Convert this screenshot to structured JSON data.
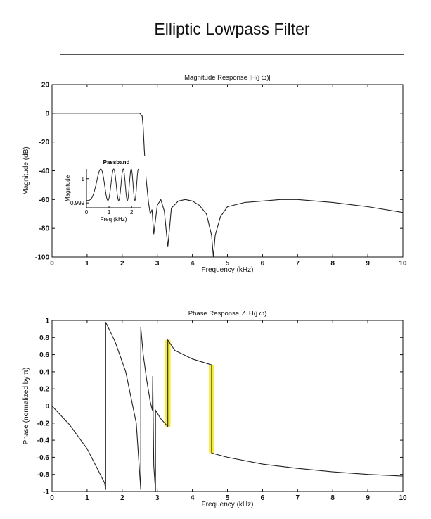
{
  "page": {
    "title": "Elliptic Lowpass Filter"
  },
  "chart_data": [
    {
      "type": "line",
      "title": "Magnitude Response |H(j ω)|",
      "xlabel": "Frequency (kHz)",
      "ylabel": "Magnitude (dB)",
      "xlim": [
        0,
        10
      ],
      "ylim": [
        -100,
        20
      ],
      "xticks": [
        "0",
        "1",
        "2",
        "3",
        "4",
        "5",
        "6",
        "7",
        "8",
        "9",
        "10"
      ],
      "yticks": [
        "20",
        "0",
        "-20",
        "-40",
        "-60",
        "-80",
        "-100"
      ],
      "grid": false,
      "series": [
        {
          "x": [
            0,
            2.5,
            2.57,
            2.6,
            2.63,
            2.68,
            2.75,
            2.8,
            2.85,
            2.9,
            3.0,
            3.1,
            3.2,
            3.3,
            3.4,
            3.6,
            3.8,
            4.0,
            4.2,
            4.4,
            4.55,
            4.6,
            4.65,
            4.8,
            5.0,
            5.5,
            6.0,
            6.5,
            7.0,
            8.0,
            9.0,
            10.0
          ],
          "y": [
            0,
            0,
            -2,
            -10,
            -25,
            -45,
            -62,
            -70,
            -67,
            -84,
            -64,
            -60,
            -68,
            -93,
            -66,
            -61,
            -60,
            -61,
            -64,
            -70,
            -85,
            -100,
            -85,
            -72,
            -65,
            -62,
            -61,
            -60,
            -60,
            -62,
            -65,
            -69
          ]
        }
      ],
      "inset": {
        "title": "Passband",
        "xlabel": "Freq (kHz)",
        "ylabel": "Magnitude",
        "xticks": [
          "0",
          "1",
          "2"
        ],
        "yticks": [
          "1",
          "0.999"
        ],
        "xlim": [
          0,
          2.4
        ],
        "ylim": [
          0.9988,
          1.0004
        ]
      }
    },
    {
      "type": "line",
      "title": "Phase Response ∠ H(j ω)",
      "xlabel": "Frequency (kHz)",
      "ylabel": "Phase (normalized by π)",
      "xlim": [
        0,
        10
      ],
      "ylim": [
        -1,
        1
      ],
      "xticks": [
        "0",
        "1",
        "2",
        "3",
        "4",
        "5",
        "6",
        "7",
        "8",
        "9",
        "10"
      ],
      "yticks": [
        "1",
        "0.8",
        "0.6",
        "0.4",
        "0.2",
        "0",
        "-0.2",
        "-0.4",
        "-0.6",
        "-0.8",
        "-1"
      ],
      "grid": false,
      "series": [
        {
          "x": [
            0,
            0.5,
            1.0,
            1.5,
            1.53,
            1.53,
            1.8,
            2.1,
            2.4,
            2.53,
            2.53,
            2.6,
            2.7,
            2.8,
            2.86,
            2.87,
            2.9,
            2.95,
            2.95,
            3.1,
            3.3,
            3.3,
            3.5,
            4.0,
            4.55,
            4.55,
            5.0,
            6.0,
            7.0,
            8.0,
            9.0,
            10.0
          ],
          "y": [
            0,
            -0.22,
            -0.5,
            -0.9,
            -0.98,
            0.98,
            0.75,
            0.4,
            -0.2,
            -0.98,
            0.92,
            0.6,
            0.3,
            0.05,
            -0.05,
            0.35,
            -0.7,
            -1.0,
            -0.05,
            -0.15,
            -0.24,
            0.77,
            0.65,
            0.55,
            0.48,
            -0.55,
            -0.6,
            -0.68,
            -0.73,
            -0.77,
            -0.8,
            -0.82
          ]
        }
      ],
      "highlights": [
        {
          "x": 3.3,
          "y_from": -0.24,
          "y_to": 0.77
        },
        {
          "x": 4.55,
          "y_from": -0.55,
          "y_to": 0.48
        }
      ],
      "highlight_color": "#f2e600"
    }
  ]
}
